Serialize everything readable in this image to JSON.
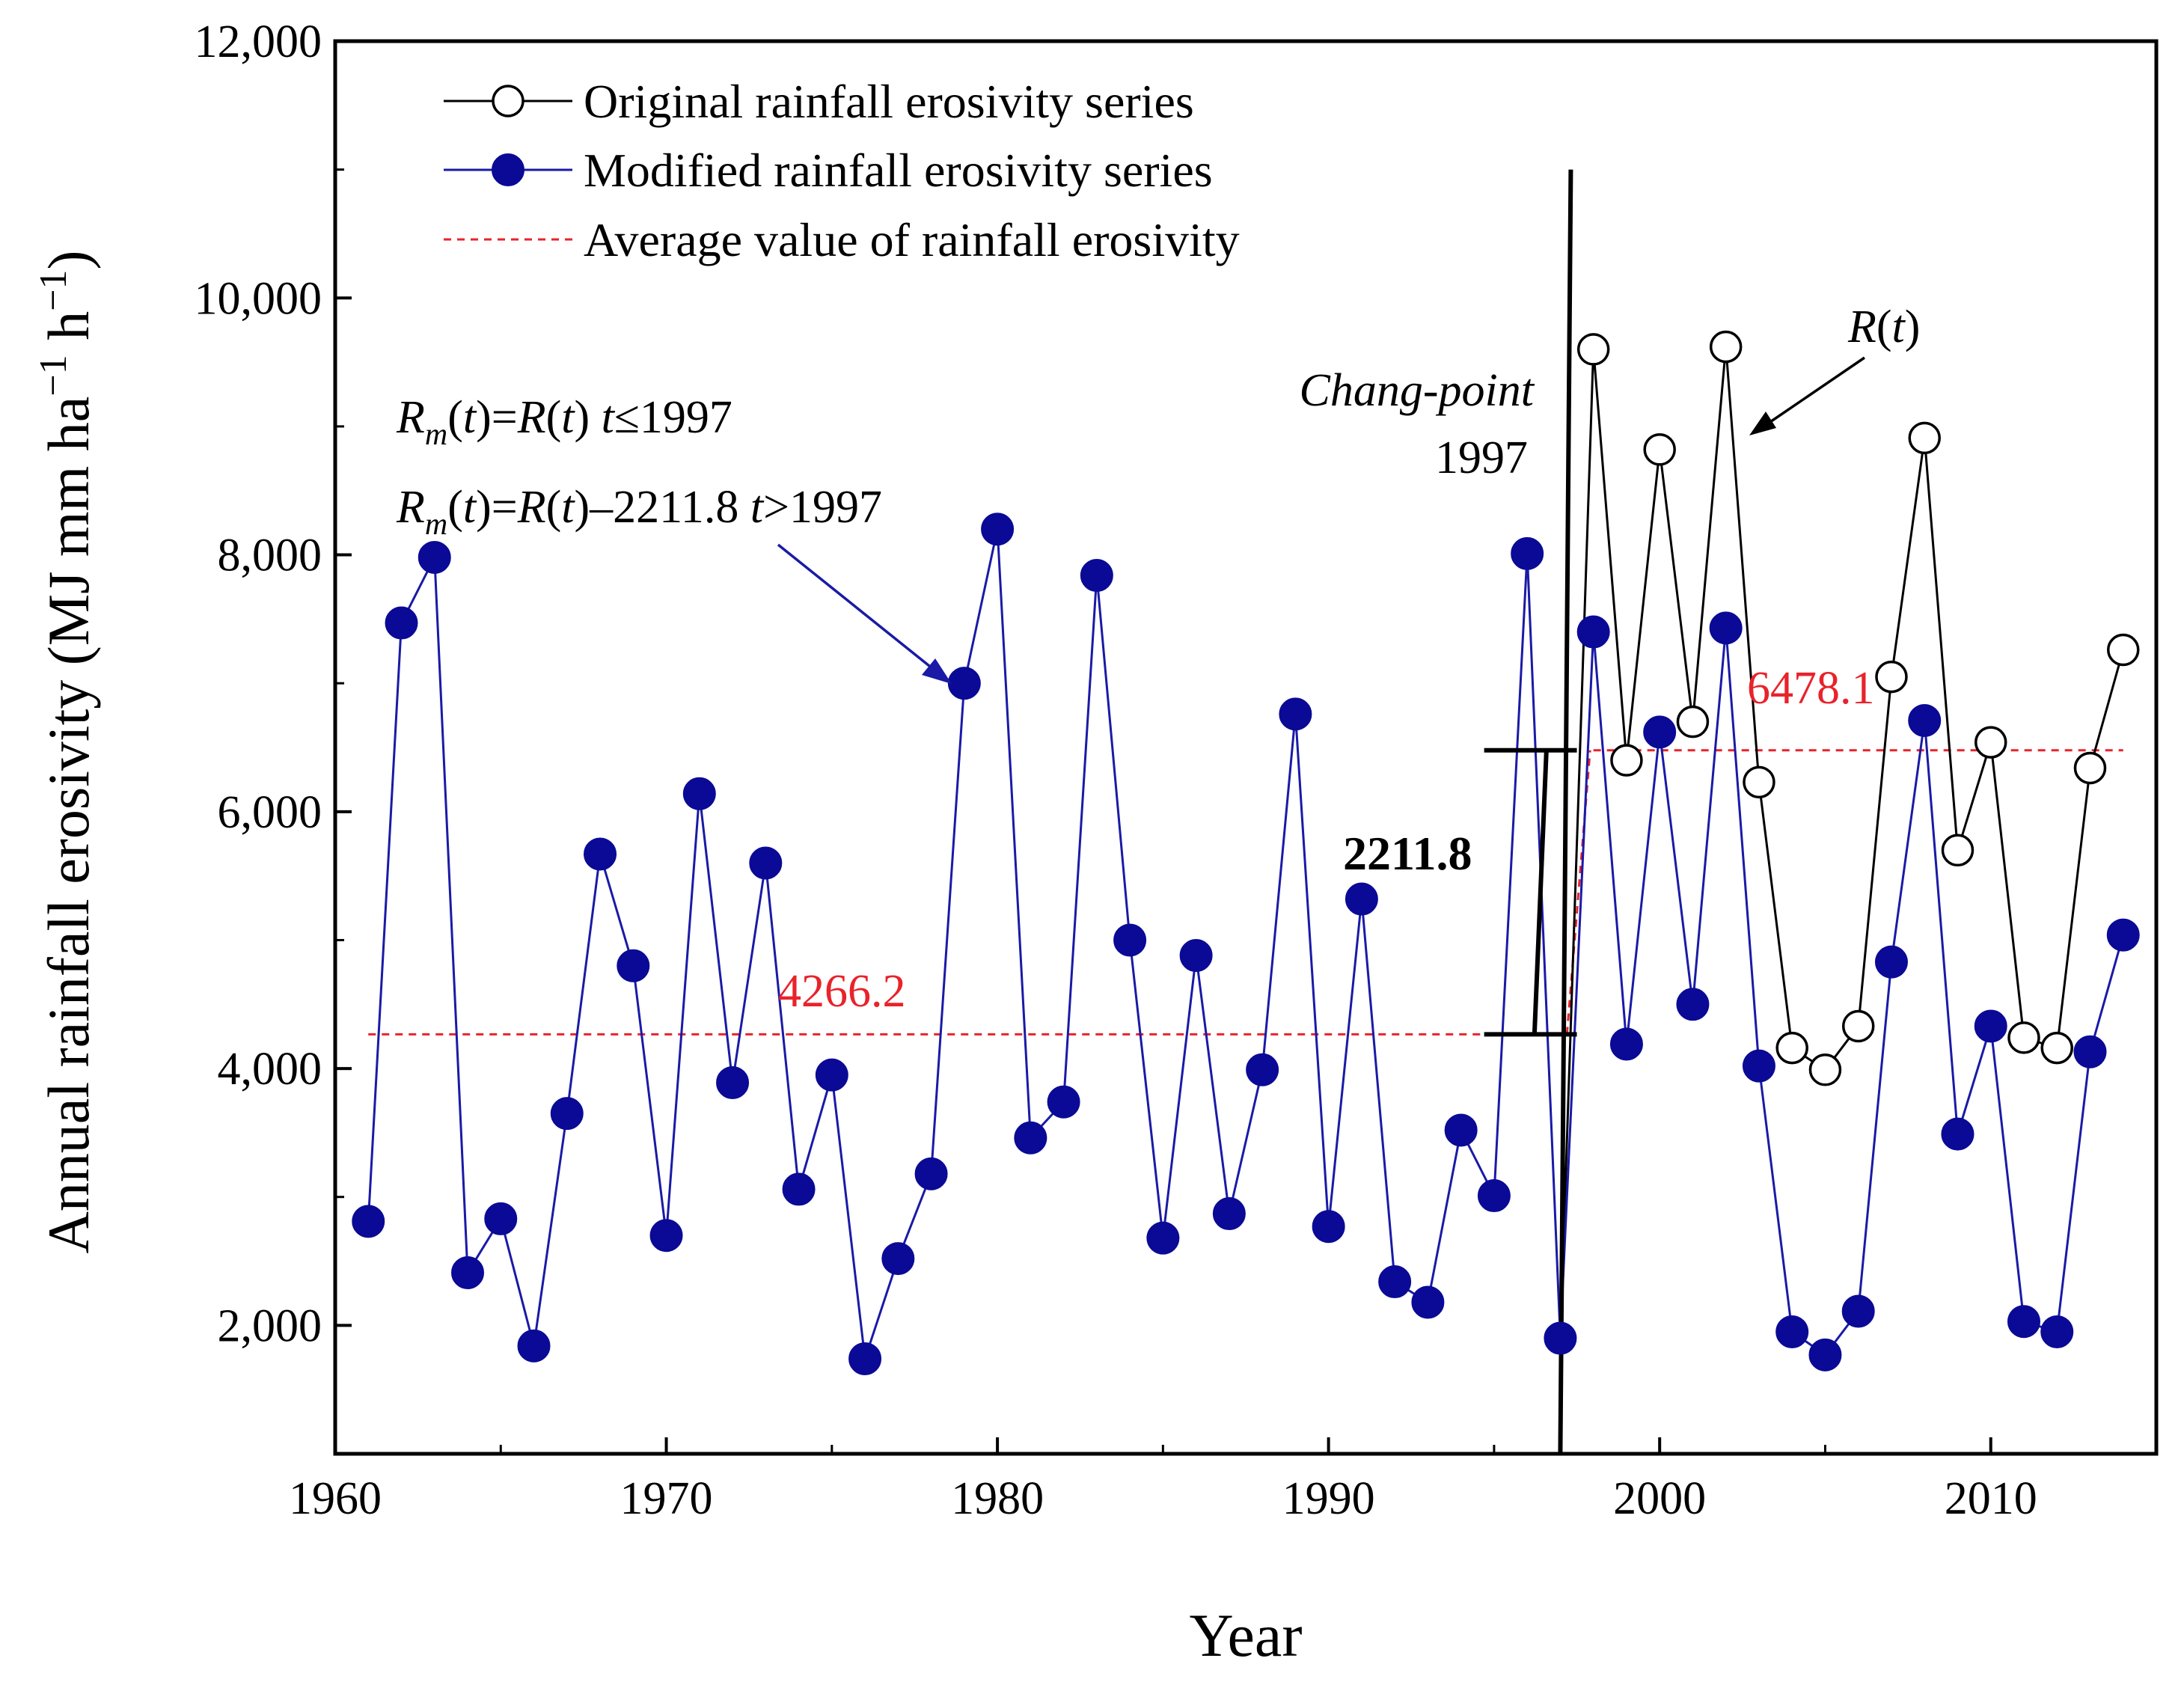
{
  "chart_data": {
    "type": "line",
    "xlabel": "Year",
    "ylabel": "Annual rainfall erosivity (MJ mm ha",
    "ylabel_sup1": "−1",
    "ylabel_mid": " h",
    "ylabel_sup2": "−1",
    "ylabel_end": ")",
    "xlim": [
      1960,
      2015
    ],
    "ylim": [
      1000,
      12000
    ],
    "x_ticks": [
      1960,
      1970,
      1980,
      1990,
      2000,
      2010
    ],
    "x_tick_labels": [
      "1960",
      "1970",
      "1980",
      "1990",
      "2000",
      "2010"
    ],
    "y_ticks": [
      2000,
      4000,
      6000,
      8000,
      10000,
      12000
    ],
    "y_tick_labels": [
      "2,000",
      "4,000",
      "6,000",
      "8,000",
      "10,000",
      "12,000"
    ],
    "legend": {
      "position": "top-left",
      "entries": [
        "Original rainfall erosivity series",
        "Modified rainfall erosivity series",
        "Average value of rainfall erosivity"
      ]
    },
    "series": [
      {
        "name": "Original rainfall erosivity series",
        "color": "#000000",
        "marker": "open-circle",
        "x": [
          1997,
          1998,
          1999,
          2000,
          2001,
          2002,
          2003,
          2004,
          2005,
          2006,
          2007,
          2008,
          2009,
          2010,
          2011,
          2012,
          2013,
          2014
        ],
        "values": [
          1900,
          9600,
          6400,
          8820,
          6700,
          9620,
          6230,
          4160,
          3990,
          4330,
          7050,
          8910,
          5700,
          6540,
          4240,
          4160,
          6340,
          7260
        ]
      },
      {
        "name": "Modified rainfall erosivity series",
        "color": "#1a1aa6",
        "marker": "filled-circle",
        "x": [
          1961,
          1962,
          1963,
          1964,
          1965,
          1966,
          1967,
          1968,
          1969,
          1970,
          1971,
          1972,
          1973,
          1974,
          1975,
          1976,
          1977,
          1978,
          1979,
          1980,
          1981,
          1982,
          1983,
          1984,
          1985,
          1986,
          1987,
          1988,
          1989,
          1990,
          1991,
          1992,
          1993,
          1994,
          1995,
          1996,
          1997,
          1998,
          1999,
          2000,
          2001,
          2002,
          2003,
          2004,
          2005,
          2006,
          2007,
          2008,
          2009,
          2010,
          2011,
          2012,
          2013,
          2014
        ],
        "values": [
          2810,
          7470,
          7980,
          2410,
          2830,
          1840,
          3650,
          5670,
          4800,
          2700,
          6140,
          3890,
          5600,
          3060,
          3950,
          1740,
          2520,
          3180,
          7000,
          8200,
          3460,
          3740,
          7840,
          5000,
          2680,
          4880,
          2870,
          3990,
          6760,
          2770,
          5320,
          2340,
          2180,
          3520,
          3010,
          8010,
          1900,
          7400,
          4190,
          6620,
          4500,
          7430,
          4020,
          1950,
          1770,
          2110,
          4830,
          6710,
          3490,
          4330,
          2030,
          1950,
          4130,
          5040
        ]
      }
    ],
    "averages": [
      {
        "name": "Average value of rainfall erosivity",
        "x_start": 1961,
        "x_end": 1997,
        "value": 4266.2,
        "label": "4266.2",
        "color": "#e8232b"
      },
      {
        "name": "Average value of rainfall erosivity",
        "x_start": 1998,
        "x_end": 2014,
        "value": 6478.1,
        "label": "6478.1",
        "color": "#e8232b"
      }
    ],
    "change_point": {
      "year": 1997,
      "label_italic": "Chang-point",
      "label_year": "1997",
      "difference_label": "2211.8",
      "lower": 4266.2,
      "upper": 6478.1
    },
    "annotations": {
      "formula1": {
        "R": "R",
        "sub": "m",
        "rest1": "(",
        "t1": "t",
        "rest2": ")=",
        "R2": "R",
        "rest3": "(",
        "t2": "t",
        "rest4": ") ",
        "t3": "t",
        "rest5": "≤1997"
      },
      "formula2": {
        "R": "R",
        "sub": "m",
        "rest1": "(",
        "t1": "t",
        "rest2": ")=",
        "R2": "R",
        "rest3": "(",
        "t2": "t",
        "rest4": ")–2211.8 ",
        "t3": "t",
        "rest5": ">1997"
      },
      "rt_label": {
        "R": "R",
        "rest1": "(",
        "t": "t",
        "rest2": ")"
      }
    }
  }
}
